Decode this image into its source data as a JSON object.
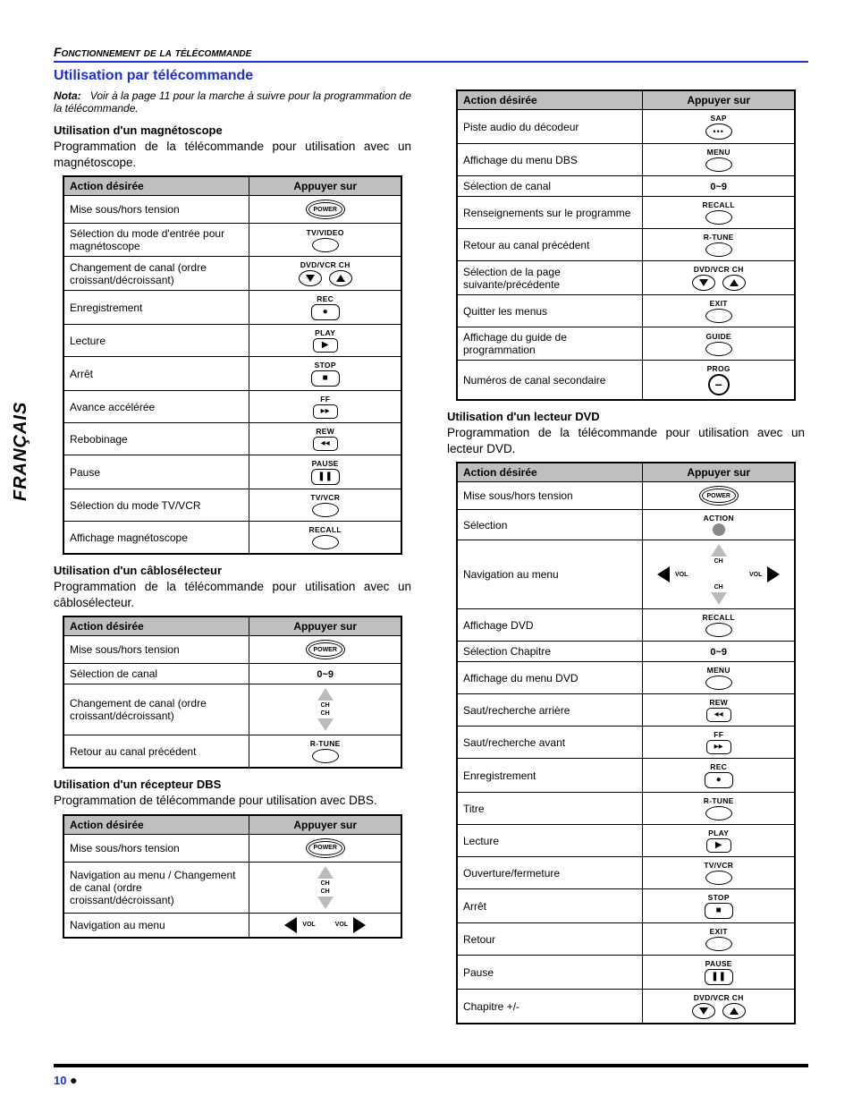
{
  "header": {
    "section": "Fonctionnement de la télécommande"
  },
  "title": "Utilisation par télécommande",
  "nota": {
    "label": "Nota:",
    "text": "Voir à la page 11 pour la marche à suivre pour la programmation de la télécommande."
  },
  "sideTab": "FRANÇAIS",
  "tableHeaders": {
    "action": "Action désirée",
    "press": "Appuyer sur"
  },
  "vcr": {
    "title": "Utilisation d'un magnétoscope",
    "intro": "Programmation de la télécommande pour utilisation avec un magnétoscope.",
    "rows": [
      {
        "action": "Mise sous/hors tension",
        "btn": "power"
      },
      {
        "action": "Sélection du mode d'entrée pour magnétoscope",
        "btn": "oval",
        "label": "TV/VIDEO"
      },
      {
        "action": "Changement de canal (ordre croissant/décroissant)",
        "btn": "updown",
        "label": "DVD/VCR CH"
      },
      {
        "action": "Enregistrement",
        "btn": "rec",
        "label": "REC"
      },
      {
        "action": "Lecture",
        "btn": "play",
        "label": "PLAY"
      },
      {
        "action": "Arrêt",
        "btn": "stop",
        "label": "STOP"
      },
      {
        "action": "Avance accélérée",
        "btn": "ff",
        "label": "FF"
      },
      {
        "action": "Rebobinage",
        "btn": "rew",
        "label": "REW"
      },
      {
        "action": "Pause",
        "btn": "pause",
        "label": "PAUSE"
      },
      {
        "action": "Sélection du mode TV/VCR",
        "btn": "oval",
        "label": "TV/VCR"
      },
      {
        "action": "Affichage magnétoscope",
        "btn": "oval",
        "label": "RECALL"
      }
    ]
  },
  "cable": {
    "title": "Utilisation d'un câblosélecteur",
    "intro": "Programmation de la télécommande pour utilisation avec un câblosélecteur.",
    "rows": [
      {
        "action": "Mise sous/hors tension",
        "btn": "power"
      },
      {
        "action": "Sélection de canal",
        "btn": "text",
        "label": "0~9"
      },
      {
        "action": "Changement de canal (ordre croissant/décroissant)",
        "btn": "chupdown"
      },
      {
        "action": "Retour au canal précédent",
        "btn": "oval",
        "label": "R-TUNE"
      }
    ]
  },
  "dbs": {
    "title": "Utilisation d'un récepteur DBS",
    "intro": "Programmation de télécommande pour utilisation avec DBS.",
    "rows": [
      {
        "action": "Mise sous/hors tension",
        "btn": "power"
      },
      {
        "action": "Navigation au menu / Changement de canal (ordre croissant/décroissant)",
        "btn": "chupdown"
      },
      {
        "action": "Navigation au menu",
        "btn": "volrow"
      }
    ]
  },
  "dbs2": {
    "rows": [
      {
        "action": "Piste audio du décodeur",
        "btn": "sap",
        "label": "SAP"
      },
      {
        "action": "Affichage du menu DBS",
        "btn": "oval",
        "label": "MENU"
      },
      {
        "action": "Sélection de canal",
        "btn": "text",
        "label": "0~9"
      },
      {
        "action": "Renseignements sur le programme",
        "btn": "oval",
        "label": "RECALL"
      },
      {
        "action": "Retour au canal précédent",
        "btn": "oval",
        "label": "R-TUNE"
      },
      {
        "action": "Sélection de la page suivante/précédente",
        "btn": "updown",
        "label": "DVD/VCR CH"
      },
      {
        "action": "Quitter les menus",
        "btn": "oval",
        "label": "EXIT"
      },
      {
        "action": "Affichage du guide de programmation",
        "btn": "oval",
        "label": "GUIDE"
      },
      {
        "action": "Numéros de canal secondaire",
        "btn": "dash",
        "label": "PROG"
      }
    ]
  },
  "dvd": {
    "title": "Utilisation d'un lecteur DVD",
    "intro": "Programmation de la télécommande pour utilisation avec un lecteur DVD.",
    "rows": [
      {
        "action": "Mise sous/hors tension",
        "btn": "power"
      },
      {
        "action": "Sélection",
        "btn": "action",
        "label": "ACTION"
      },
      {
        "action": "Navigation au menu",
        "btn": "navcluster"
      },
      {
        "action": "Affichage DVD",
        "btn": "oval",
        "label": "RECALL"
      },
      {
        "action": "Sélection Chapitre",
        "btn": "text",
        "label": "0~9"
      },
      {
        "action": "Affichage du menu DVD",
        "btn": "oval",
        "label": "MENU"
      },
      {
        "action": "Saut/recherche arrière",
        "btn": "rew",
        "label": "REW"
      },
      {
        "action": "Saut/recherche avant",
        "btn": "ff",
        "label": "FF"
      },
      {
        "action": "Enregistrement",
        "btn": "rec",
        "label": "REC"
      },
      {
        "action": "Titre",
        "btn": "oval",
        "label": "R-TUNE"
      },
      {
        "action": "Lecture",
        "btn": "play",
        "label": "PLAY"
      },
      {
        "action": "Ouverture/fermeture",
        "btn": "oval",
        "label": "TV/VCR"
      },
      {
        "action": "Arrêt",
        "btn": "stop",
        "label": "STOP"
      },
      {
        "action": "Retour",
        "btn": "oval",
        "label": "EXIT"
      },
      {
        "action": "Pause",
        "btn": "pause",
        "label": "PAUSE"
      },
      {
        "action": "Chapitre +/-",
        "btn": "updown",
        "label": "DVD/VCR CH"
      }
    ]
  },
  "labels": {
    "power": "POWER",
    "ch": "CH",
    "vol": "VOL"
  },
  "footer": {
    "page": "10"
  },
  "colors": {
    "accent": "#2030d0",
    "headerBg": "#bfbfbf"
  }
}
